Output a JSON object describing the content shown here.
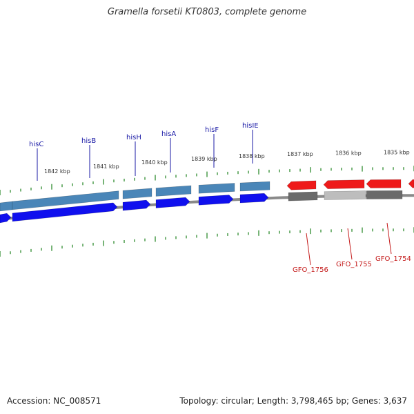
{
  "title": "Gramella forsetii KT0803, complete genome",
  "footer": {
    "accession": "Accession: NC_008571",
    "info": "Topology: circular; Length: 3,798,465 bp; Genes: 3,637"
  },
  "colors": {
    "backbone": "#8a8a8a",
    "tick": "#2e8b2e",
    "forward_gene": "#1010ee",
    "forward_cds": "#4a86b8",
    "reverse_gene": "#ee1a1a",
    "reverse_cds": "#6a6a6a",
    "reverse_cds_light": "#bdbdbd",
    "label_blue": "#1a1aa6",
    "label_red": "#c41a1a"
  },
  "ticks": [
    {
      "label": "1842 kbp"
    },
    {
      "label": "1841 kbp"
    },
    {
      "label": "1840 kbp"
    },
    {
      "label": "1839 kbp"
    },
    {
      "label": "1838 kbp"
    },
    {
      "label": "1837 kbp"
    },
    {
      "label": "1836 kbp"
    },
    {
      "label": "1835 kbp"
    }
  ],
  "genes": [
    {
      "name": "hisC",
      "strand": "forward"
    },
    {
      "name": "hisB",
      "strand": "forward"
    },
    {
      "name": "hisH",
      "strand": "forward"
    },
    {
      "name": "hisA",
      "strand": "forward"
    },
    {
      "name": "hisF",
      "strand": "forward"
    },
    {
      "name": "hisIE",
      "strand": "forward"
    },
    {
      "name": "GFO_1756",
      "strand": "reverse"
    },
    {
      "name": "GFO_1755",
      "strand": "reverse"
    },
    {
      "name": "GFO_1754",
      "strand": "reverse"
    }
  ]
}
